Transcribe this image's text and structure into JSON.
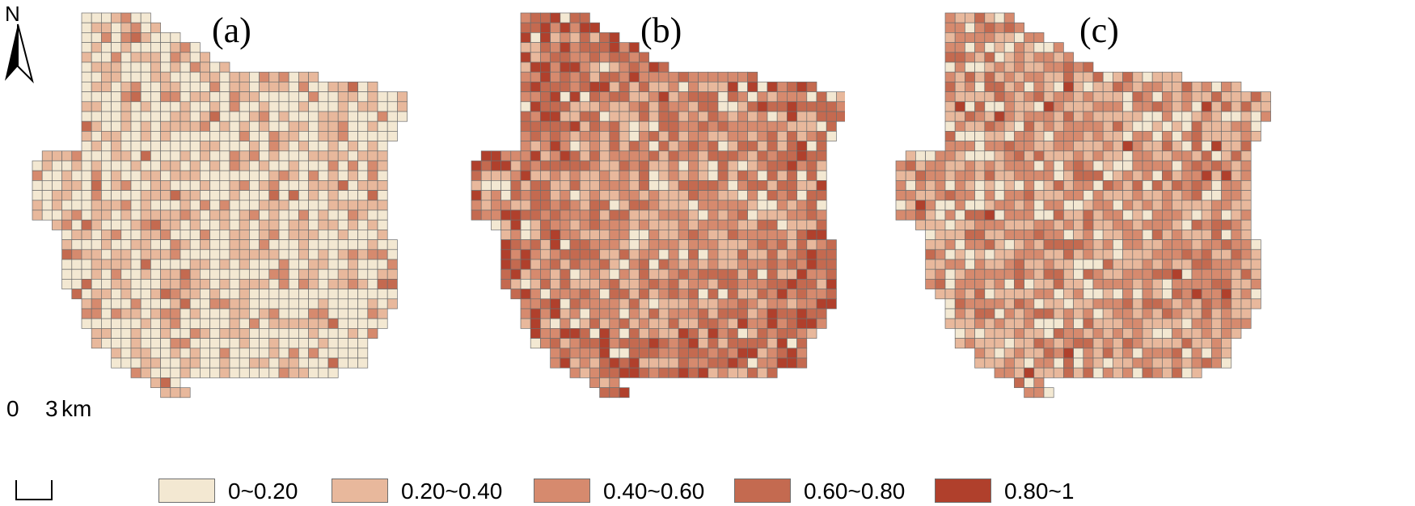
{
  "panels": [
    {
      "label": "(a)",
      "distribution": [
        0.55,
        0.33,
        0.1,
        0.02,
        0.0
      ]
    },
    {
      "label": "(b)",
      "distribution": [
        0.08,
        0.22,
        0.28,
        0.32,
        0.1
      ]
    },
    {
      "label": "(c)",
      "distribution": [
        0.15,
        0.38,
        0.33,
        0.12,
        0.02
      ]
    }
  ],
  "north_arrow": {
    "label": "N"
  },
  "scale_bar": {
    "start": "0",
    "end": "3",
    "unit": "km"
  },
  "legend": [
    {
      "label": "0~0.20",
      "color": "#f3e8d2"
    },
    {
      "label": "0.20~0.40",
      "color": "#e8b89c"
    },
    {
      "label": "0.40~0.60",
      "color": "#d68a6e"
    },
    {
      "label": "0.60~0.80",
      "color": "#c46a50"
    },
    {
      "label": "0.80~1",
      "color": "#b0402c"
    }
  ],
  "grid_line_color": "#6e6e6e"
}
